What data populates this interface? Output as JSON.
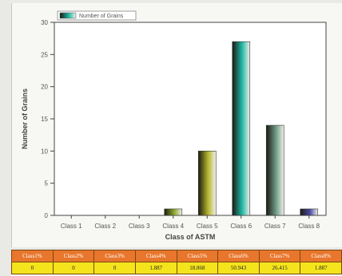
{
  "colors": {
    "panel_bg": "#f7f7f4",
    "table_header_bg": "#e8762c",
    "table_cell_bg": "#f4e41c",
    "bar_class4": "#8aa82a",
    "bar_class5": "#b5b52f",
    "bar_class6": "#1fb7a4",
    "bar_class7": "#6e9a86",
    "bar_class8": "#4a4aa0"
  },
  "chart_data": {
    "type": "bar",
    "title": "",
    "xlabel": "Class of ASTM",
    "ylabel": "Number of Grains",
    "ylim": [
      0,
      30
    ],
    "yticks": [
      0,
      5,
      10,
      15,
      20,
      25,
      30
    ],
    "grid": false,
    "legend_position": "top-left",
    "categories": [
      "Class 1",
      "Class 2",
      "Class 3",
      "Class 4",
      "Class 5",
      "Class 6",
      "Class 7",
      "Class 8"
    ],
    "series": [
      {
        "name": "Number of Grains",
        "values": [
          0,
          0,
          0,
          1,
          10,
          27,
          14,
          1
        ]
      }
    ],
    "bar_colors": [
      "#8aa82a",
      "#8aa82a",
      "#8aa82a",
      "#8aa82a",
      "#b5b52f",
      "#1fb7a4",
      "#6e9a86",
      "#4a4aa0"
    ]
  },
  "table": {
    "headers": [
      "Class1%",
      "Class2%",
      "Class3%",
      "Class4%",
      "Class5%",
      "Class6%",
      "Class7%",
      "Class8%"
    ],
    "values": [
      "0",
      "0",
      "0",
      "1.887",
      "18.868",
      "50.943",
      "26.415",
      "1.887"
    ]
  }
}
